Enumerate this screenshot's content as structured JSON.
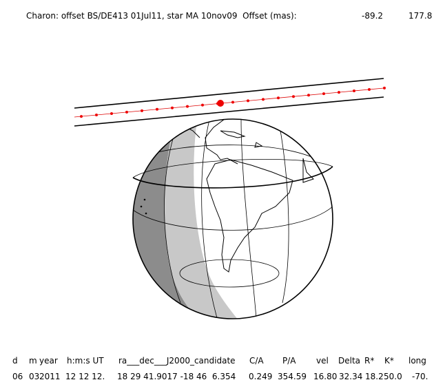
{
  "header": {
    "title": "Charon: offset BS/DE413 01Jul11, star MA 10nov09  Offset (mas):",
    "offset_x": "-89.2",
    "offset_y": "177.8"
  },
  "table": {
    "columns": [
      "d",
      "m",
      "year",
      "h:m:s UT",
      "ra___dec___J2000_candidate",
      "C/A",
      "P/A",
      "vel",
      "Delta",
      "R*",
      "K*",
      "long"
    ],
    "rows": [
      [
        "06",
        "03",
        "2011",
        "12 12 12.",
        "18 29 41.9017 -18 46  6.354",
        "0.249",
        "354.59",
        "16.80",
        "32.34",
        "18.2",
        "50.0",
        "-70."
      ]
    ]
  }
}
